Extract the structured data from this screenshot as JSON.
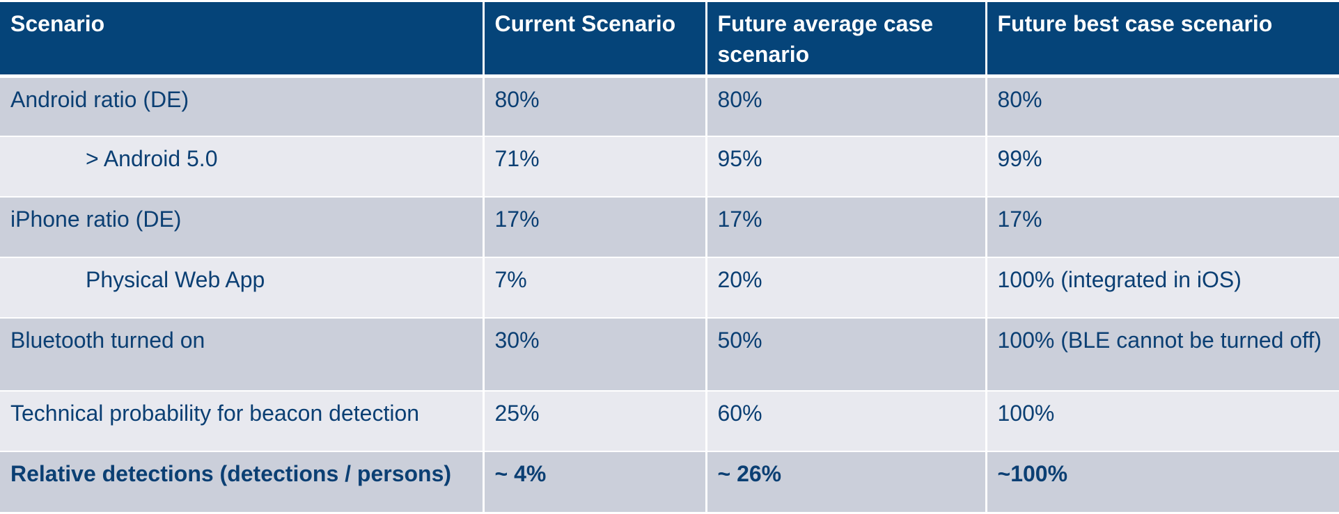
{
  "table": {
    "headers": [
      "Scenario",
      "Current Scenario",
      "Future average case scenario",
      "Future best case scenario"
    ],
    "rows": [
      [
        "Android ratio (DE)",
        "80%",
        "80%",
        "80%"
      ],
      [
        "> Android 5.0",
        "71%",
        "95%",
        "99%"
      ],
      [
        "iPhone ratio (DE)",
        "17%",
        "17%",
        "17%"
      ],
      [
        "Physical Web App",
        "7%",
        "20%",
        "100% (integrated in iOS)"
      ],
      [
        "Bluetooth turned on",
        "30%",
        "50%",
        "100% (BLE cannot be turned off)"
      ],
      [
        "Technical probability for beacon detection",
        "25%",
        "60%",
        "100%"
      ],
      [
        "Relative detections (detections / persons)",
        "~ 4%",
        "~ 26%",
        "~100%"
      ]
    ]
  },
  "colors": {
    "header_bg": "#054479",
    "row_dark": "#cbcfda",
    "row_light": "#e8e9ef",
    "text": "#0b3f73"
  }
}
